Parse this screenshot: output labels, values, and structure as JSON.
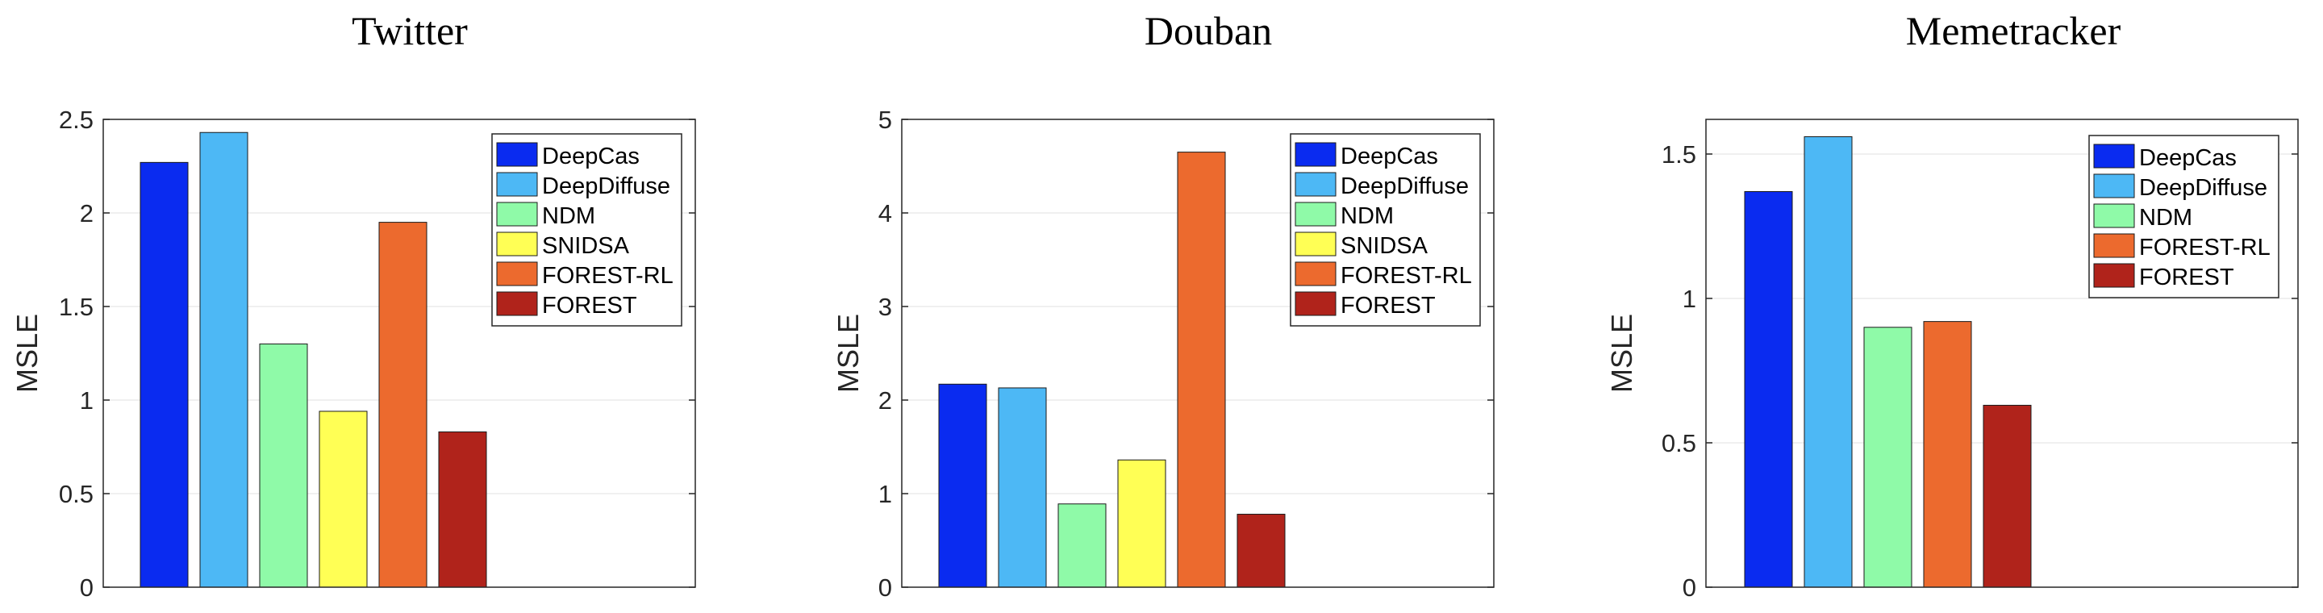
{
  "chart_data": [
    {
      "type": "bar",
      "title": "Twitter",
      "ylabel": "MSLE",
      "ylim": [
        0,
        2.5
      ],
      "yticks": [
        0,
        0.5,
        1,
        1.5,
        2,
        2.5
      ],
      "ytick_labels": [
        "0",
        "0.5",
        "1",
        "1.5",
        "2",
        "2.5"
      ],
      "grid": true,
      "legend_position": "top-right",
      "series": [
        {
          "name": "DeepCas",
          "value": 2.27,
          "color": "#0a2bf0"
        },
        {
          "name": "DeepDiffuse",
          "value": 2.43,
          "color": "#4db8f5"
        },
        {
          "name": "NDM",
          "value": 1.3,
          "color": "#8ffaa8"
        },
        {
          "name": "SNIDSA",
          "value": 0.94,
          "color": "#ffff55"
        },
        {
          "name": "FOREST-RL",
          "value": 1.95,
          "color": "#ec6a2e"
        },
        {
          "name": "FOREST",
          "value": 0.83,
          "color": "#b0231b"
        }
      ]
    },
    {
      "type": "bar",
      "title": "Douban",
      "ylabel": "MSLE",
      "ylim": [
        0,
        5
      ],
      "yticks": [
        0,
        1,
        2,
        3,
        4,
        5
      ],
      "ytick_labels": [
        "0",
        "1",
        "2",
        "3",
        "4",
        "5"
      ],
      "grid": true,
      "legend_position": "top-right",
      "series": [
        {
          "name": "DeepCas",
          "value": 2.17,
          "color": "#0a2bf0"
        },
        {
          "name": "DeepDiffuse",
          "value": 2.13,
          "color": "#4db8f5"
        },
        {
          "name": "NDM",
          "value": 0.89,
          "color": "#8ffaa8"
        },
        {
          "name": "SNIDSA",
          "value": 1.36,
          "color": "#ffff55"
        },
        {
          "name": "FOREST-RL",
          "value": 4.65,
          "color": "#ec6a2e"
        },
        {
          "name": "FOREST",
          "value": 0.78,
          "color": "#b0231b"
        }
      ]
    },
    {
      "type": "bar",
      "title": "Memetracker",
      "ylabel": "MSLE",
      "ylim": [
        0,
        1.62
      ],
      "yticks": [
        0,
        0.5,
        1,
        1.5
      ],
      "ytick_labels": [
        "0",
        "0.5",
        "1",
        "1.5"
      ],
      "grid": true,
      "legend_position": "top-right",
      "series": [
        {
          "name": "DeepCas",
          "value": 1.37,
          "color": "#0a2bf0"
        },
        {
          "name": "DeepDiffuse",
          "value": 1.56,
          "color": "#4db8f5"
        },
        {
          "name": "NDM",
          "value": 0.9,
          "color": "#8ffaa8"
        },
        {
          "name": "FOREST-RL",
          "value": 0.92,
          "color": "#ec6a2e"
        },
        {
          "name": "FOREST",
          "value": 0.63,
          "color": "#b0231b"
        }
      ]
    }
  ]
}
